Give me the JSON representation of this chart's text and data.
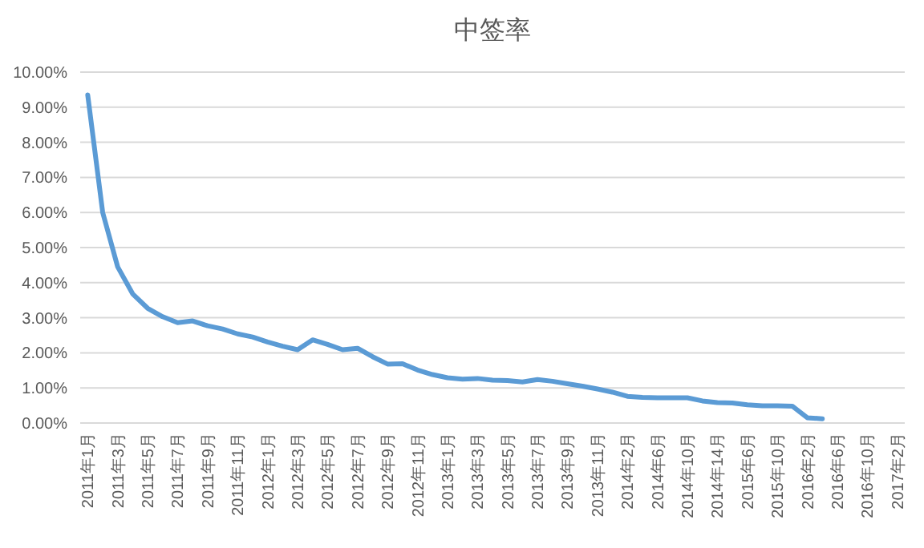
{
  "chart_data": {
    "type": "line",
    "title": "中签率",
    "categories": [
      "2011年1月",
      null,
      "2011年3月",
      null,
      "2011年5月",
      null,
      "2011年7月",
      null,
      "2011年9月",
      null,
      "2011年11月",
      null,
      "2012年1月",
      null,
      "2012年3月",
      null,
      "2012年5月",
      null,
      "2012年7月",
      null,
      "2012年9月",
      null,
      "2012年11月",
      null,
      "2013年1月",
      null,
      "2013年3月",
      null,
      "2013年5月",
      null,
      "2013年7月",
      null,
      "2013年9月",
      null,
      "2013年11月",
      null,
      "2014年2月",
      null,
      "2014年6月",
      null,
      "2014年10月",
      null,
      "2014年14月",
      null,
      "2015年6月",
      null,
      "2015年10月",
      null,
      "2016年2月",
      null,
      "2016年6月",
      null,
      "2016年10月",
      null,
      "2017年2月"
    ],
    "series": [
      {
        "color": "#5b9bd5",
        "values": [
          9.35,
          6.0,
          4.45,
          3.68,
          3.27,
          3.03,
          2.86,
          2.91,
          2.77,
          2.68,
          2.54,
          2.45,
          2.31,
          2.19,
          2.09,
          2.37,
          2.24,
          2.09,
          2.13,
          1.89,
          1.68,
          1.69,
          1.51,
          1.38,
          1.29,
          1.25,
          1.27,
          1.22,
          1.21,
          1.17,
          1.24,
          1.19,
          1.12,
          1.05,
          0.97,
          0.88,
          0.76,
          0.73,
          0.72,
          0.72,
          0.72,
          0.63,
          0.58,
          0.57,
          0.52,
          0.49,
          0.49,
          0.48,
          0.15,
          0.12,
          null,
          null,
          null,
          null,
          null
        ]
      }
    ],
    "ylim": [
      0,
      10
    ],
    "yticks": [
      {
        "value": 0,
        "label": "0.00%"
      },
      {
        "value": 1,
        "label": "1.00%"
      },
      {
        "value": 2,
        "label": "2.00%"
      },
      {
        "value": 3,
        "label": "3.00%"
      },
      {
        "value": 4,
        "label": "4.00%"
      },
      {
        "value": 5,
        "label": "5.00%"
      },
      {
        "value": 6,
        "label": "6.00%"
      },
      {
        "value": 7,
        "label": "7.00%"
      },
      {
        "value": 8,
        "label": "8.00%"
      },
      {
        "value": 9,
        "label": "9.00%"
      },
      {
        "value": 10,
        "label": "10.00%"
      }
    ],
    "grid": "y"
  }
}
